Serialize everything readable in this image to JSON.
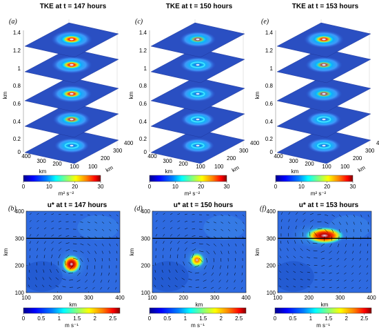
{
  "tke_titles": [
    "TKE at t = 147 hours",
    "TKE at t = 150 hours",
    "TKE at t = 153 hours"
  ],
  "u_titles": [
    "u* at t = 147 hours",
    "u* at t = 150 hours",
    "u* at t = 153 hours"
  ],
  "panel_labels_top": [
    "(a)",
    "(c)",
    "(e)"
  ],
  "panel_labels_bottom": [
    "(b)",
    "(d)",
    "(f)"
  ],
  "z_axis_label": "km",
  "z_ticks": [
    "1.4",
    "1.2",
    "1",
    "0.8",
    "0.6",
    "0.4",
    "0.2",
    "0"
  ],
  "x3d_ticks": [
    "400",
    "300",
    "200",
    "100"
  ],
  "x3d_label": "km",
  "y3d_ticks": [
    "100",
    "200",
    "300",
    "400"
  ],
  "y3d_label": "km",
  "tke_cbar_ticks": [
    "0",
    "10",
    "20",
    "30"
  ],
  "tke_cbar_unit": "m² s⁻²",
  "u_cbar_ticks": [
    "0",
    "0.5",
    "1",
    "1.5",
    "2",
    "2.5"
  ],
  "u_cbar_unit": "m s⁻¹",
  "map_y_ticks": [
    "400",
    "300",
    "200",
    "100"
  ],
  "map_x_ticks": [
    "100",
    "200",
    "300",
    "400"
  ],
  "map_axis_label": "km",
  "colors": {
    "field_blue": "#2450c8",
    "cbar": [
      "#00008f",
      "#0000ff",
      "#0080ff",
      "#00ffff",
      "#80ff80",
      "#ffff00",
      "#ff8000",
      "#ff0000",
      "#800000"
    ]
  },
  "chart_data": [
    {
      "type": "heatmap",
      "title": "TKE at t = 147 hours",
      "layers": 5,
      "zlim": [
        0,
        1.4
      ],
      "zlabel": "km",
      "xlim": [
        100,
        400
      ],
      "ylim": [
        100,
        400
      ],
      "clim": [
        0,
        30
      ]
    },
    {
      "type": "heatmap",
      "title": "TKE at t = 150 hours",
      "layers": 5,
      "zlim": [
        0,
        1.4
      ],
      "zlabel": "km",
      "xlim": [
        100,
        400
      ],
      "ylim": [
        100,
        400
      ],
      "clim": [
        0,
        30
      ]
    },
    {
      "type": "heatmap",
      "title": "TKE at t = 153 hours",
      "layers": 5,
      "zlim": [
        0,
        1.4
      ],
      "zlabel": "km",
      "xlim": [
        100,
        400
      ],
      "ylim": [
        100,
        400
      ],
      "clim": [
        0,
        30
      ]
    },
    {
      "type": "heatmap",
      "title": "u* at t = 147 hours",
      "xlim": [
        100,
        400
      ],
      "ylim": [
        100,
        400
      ],
      "clim": [
        0,
        2.7
      ],
      "xlabel": "km",
      "ylabel": "km"
    },
    {
      "type": "heatmap",
      "title": "u* at t = 150 hours",
      "xlim": [
        100,
        400
      ],
      "ylim": [
        100,
        400
      ],
      "clim": [
        0,
        2.7
      ],
      "xlabel": "km",
      "ylabel": "km"
    },
    {
      "type": "heatmap",
      "title": "u* at t = 153 hours",
      "xlim": [
        100,
        400
      ],
      "ylim": [
        100,
        400
      ],
      "clim": [
        0,
        2.7
      ],
      "xlabel": "km",
      "ylabel": "km"
    }
  ]
}
